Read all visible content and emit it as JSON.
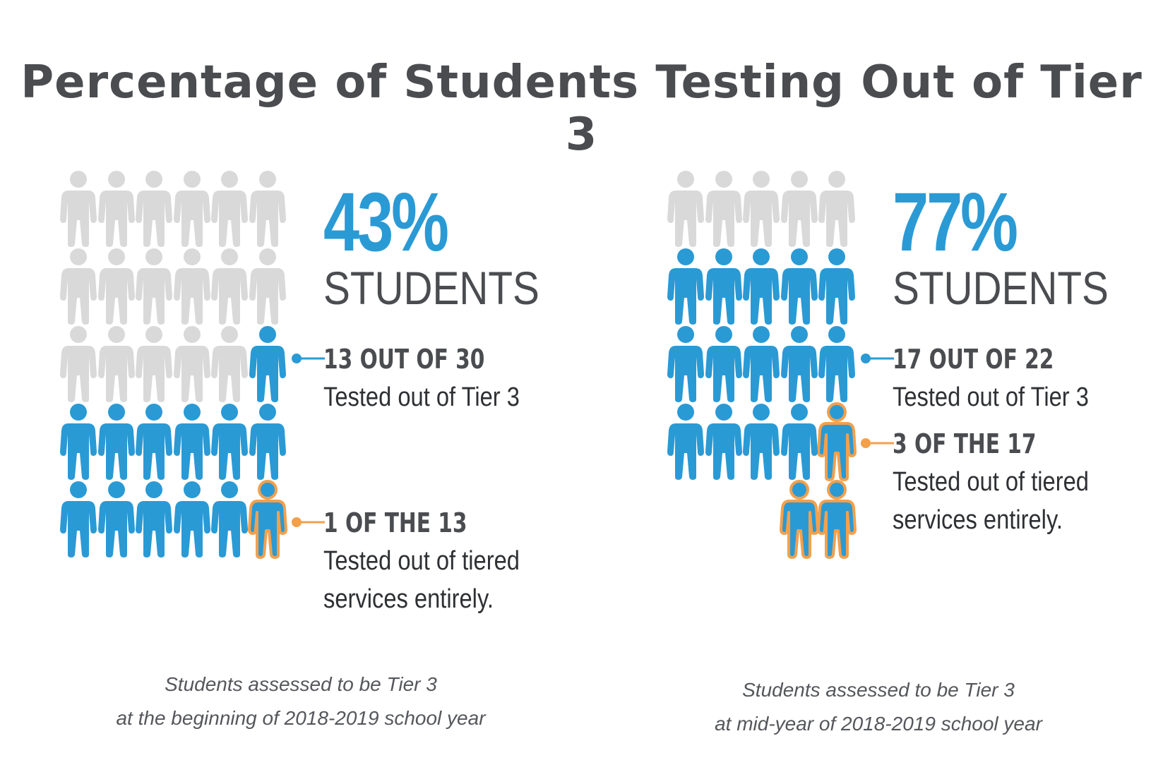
{
  "title": "Percentage of Students Testing Out of Tier 3",
  "colors": {
    "grey": "#d9d9d9",
    "blue": "#2a9ad5",
    "orange": "#f4a04b",
    "dark": "#4a4c50"
  },
  "icon": "person-icon",
  "chart_data": [
    {
      "type": "pictogram",
      "total": 30,
      "tested_out": 13,
      "tested_out_entirely": 1,
      "percent_label": "43%",
      "unit_label": "STUDENTS",
      "annotations": [
        {
          "heading": "13 OUT OF 30",
          "text": [
            "Tested out of Tier 3"
          ]
        },
        {
          "heading": "1 OF THE 13",
          "text": [
            "Tested out of tiered",
            "services entirely."
          ]
        }
      ],
      "caption": [
        "Students assessed to be Tier 3",
        "at the beginning of 2018-2019 school year"
      ]
    },
    {
      "type": "pictogram",
      "total": 22,
      "tested_out": 17,
      "tested_out_entirely": 3,
      "percent_label": "77%",
      "unit_label": "STUDENTS",
      "annotations": [
        {
          "heading": "17 OUT OF 22",
          "text": [
            "Tested out of Tier 3"
          ]
        },
        {
          "heading": "3 OF THE 17",
          "text": [
            "Tested out of tiered",
            "services entirely."
          ]
        }
      ],
      "caption": [
        "Students assessed to be Tier 3",
        "at mid-year of 2018-2019 school year"
      ]
    }
  ]
}
